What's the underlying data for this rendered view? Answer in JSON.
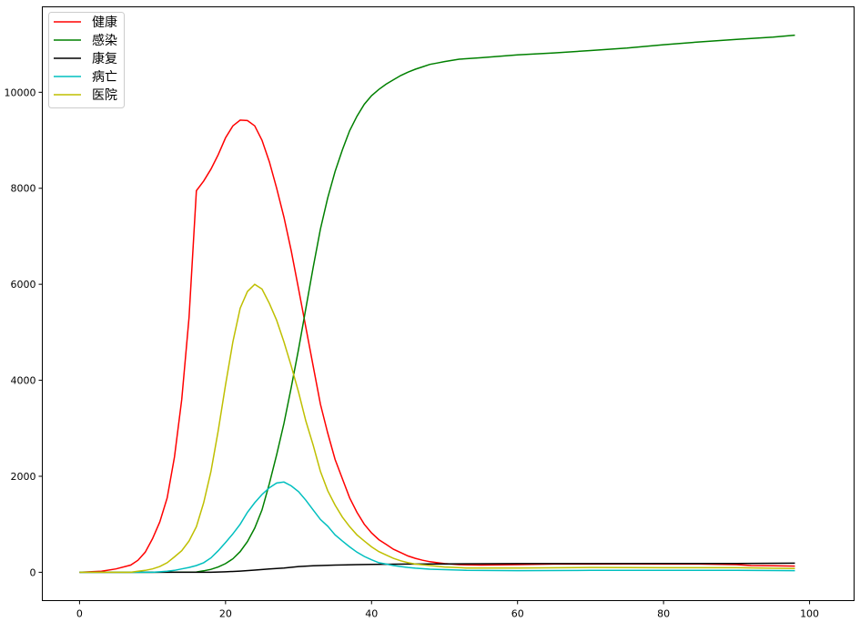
{
  "chart_data": {
    "type": "line",
    "title": "",
    "xlabel": "",
    "ylabel": "",
    "xlim": [
      -5.1,
      106.1
    ],
    "ylim": [
      -590,
      11780
    ],
    "xticks": [
      0,
      20,
      40,
      60,
      80,
      100
    ],
    "yticks": [
      0,
      2000,
      4000,
      6000,
      8000,
      10000
    ],
    "grid": false,
    "legend_position": "top-left",
    "series": [
      {
        "name": "健康",
        "color": "#ff0000",
        "x": [
          0,
          3,
          5,
          7,
          8,
          9,
          10,
          11,
          12,
          13,
          14,
          15,
          16,
          17,
          18,
          19,
          20,
          21,
          22,
          23,
          24,
          25,
          26,
          27,
          28,
          29,
          30,
          31,
          32,
          33,
          34,
          35,
          36,
          37,
          38,
          39,
          40,
          41,
          42,
          43,
          44,
          45,
          46,
          47,
          48,
          49,
          50,
          52,
          55,
          60,
          65,
          70,
          75,
          80,
          85,
          90,
          92,
          95,
          98
        ],
        "y": [
          0,
          20,
          70,
          150,
          250,
          420,
          700,
          1050,
          1550,
          2400,
          3600,
          5300,
          7950,
          8150,
          8400,
          8700,
          9050,
          9300,
          9420,
          9410,
          9300,
          9000,
          8550,
          8000,
          7400,
          6700,
          5900,
          5100,
          4300,
          3500,
          2900,
          2350,
          1950,
          1550,
          1250,
          1000,
          820,
          680,
          580,
          480,
          410,
          340,
          290,
          250,
          220,
          200,
          180,
          160,
          150,
          160,
          170,
          170,
          175,
          170,
          170,
          160,
          140,
          135,
          130
        ]
      },
      {
        "name": "感染",
        "color": "#008000",
        "x": [
          0,
          10,
          16,
          17,
          18,
          19,
          20,
          21,
          22,
          23,
          24,
          25,
          26,
          27,
          28,
          29,
          30,
          31,
          32,
          33,
          34,
          35,
          36,
          37,
          38,
          39,
          40,
          41,
          42,
          43,
          44,
          45,
          46,
          47,
          48,
          49,
          50,
          52,
          55,
          60,
          65,
          70,
          75,
          80,
          85,
          90,
          95,
          98
        ],
        "y": [
          0,
          0,
          5,
          30,
          60,
          110,
          180,
          280,
          430,
          640,
          920,
          1300,
          1850,
          2450,
          3100,
          3850,
          4650,
          5500,
          6350,
          7150,
          7800,
          8350,
          8800,
          9200,
          9500,
          9750,
          9930,
          10060,
          10170,
          10260,
          10350,
          10420,
          10480,
          10530,
          10580,
          10610,
          10640,
          10690,
          10720,
          10780,
          10820,
          10870,
          10920,
          10990,
          11050,
          11100,
          11150,
          11190
        ]
      },
      {
        "name": "康复",
        "color": "#000000",
        "x": [
          0,
          18,
          20,
          22,
          24,
          26,
          28,
          30,
          32,
          35,
          38,
          40,
          45,
          50,
          60,
          70,
          80,
          90,
          98
        ],
        "y": [
          0,
          0,
          10,
          25,
          45,
          70,
          90,
          120,
          135,
          150,
          160,
          165,
          170,
          175,
          180,
          180,
          185,
          185,
          190
        ]
      },
      {
        "name": "病亡",
        "color": "#00bfbf",
        "x": [
          0,
          10,
          11,
          12,
          13,
          14,
          15,
          16,
          17,
          18,
          19,
          20,
          21,
          22,
          23,
          24,
          25,
          26,
          27,
          28,
          29,
          30,
          31,
          32,
          33,
          34,
          35,
          36,
          37,
          38,
          39,
          40,
          41,
          42,
          43,
          44,
          45,
          46,
          48,
          50,
          53,
          60,
          70,
          80,
          90,
          98
        ],
        "y": [
          0,
          0,
          10,
          20,
          40,
          70,
          100,
          140,
          200,
          300,
          450,
          620,
          800,
          1000,
          1250,
          1450,
          1620,
          1760,
          1860,
          1880,
          1800,
          1680,
          1500,
          1300,
          1100,
          960,
          780,
          650,
          530,
          420,
          330,
          260,
          200,
          170,
          140,
          120,
          100,
          85,
          65,
          55,
          40,
          35,
          40,
          40,
          40,
          35
        ]
      },
      {
        "name": "医院",
        "color": "#bfbf00",
        "x": [
          0,
          7,
          8,
          9,
          10,
          11,
          12,
          13,
          14,
          15,
          16,
          17,
          18,
          19,
          20,
          21,
          22,
          23,
          24,
          25,
          26,
          27,
          28,
          29,
          30,
          31,
          32,
          33,
          34,
          35,
          36,
          37,
          38,
          39,
          40,
          41,
          42,
          43,
          44,
          45,
          46,
          48,
          50,
          53,
          60,
          70,
          80,
          90,
          98
        ],
        "y": [
          0,
          0,
          20,
          40,
          70,
          120,
          200,
          320,
          450,
          650,
          950,
          1450,
          2100,
          2950,
          3900,
          4800,
          5500,
          5850,
          6000,
          5900,
          5600,
          5250,
          4800,
          4300,
          3750,
          3150,
          2650,
          2100,
          1700,
          1400,
          1150,
          950,
          780,
          650,
          530,
          430,
          360,
          290,
          240,
          200,
          170,
          140,
          110,
          90,
          90,
          100,
          95,
          95,
          80
        ]
      }
    ]
  }
}
